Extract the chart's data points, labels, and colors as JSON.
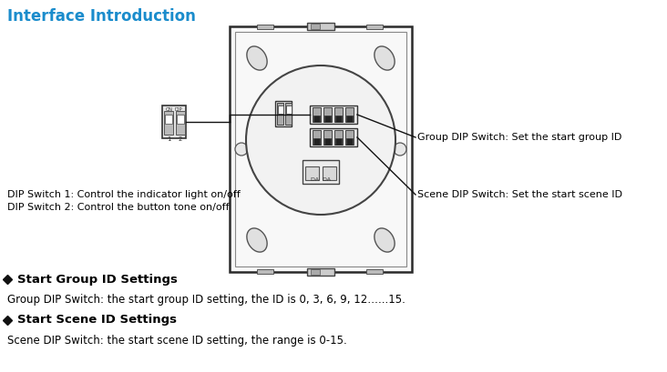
{
  "title": "Interface Introduction",
  "title_color": "#1a8ccc",
  "title_fontsize": 12,
  "bg_color": "#ffffff",
  "bullet1_heading": "Start Group ID Settings",
  "bullet1_text": "Group DIP Switch: the start group ID setting, the ID is 0, 3, 6, 9, 12…...15.",
  "bullet2_heading": "Start Scene ID Settings",
  "bullet2_text": "Scene DIP Switch: the start scene ID setting, the range is 0-15.",
  "label_group": "Group DIP Switch: Set the start group ID",
  "label_scene": "Scene DIP Switch: Set the start scene ID",
  "label_dip1": "DIP Switch 1: Control the indicator light on/off",
  "label_dip2": "DIP Switch 2: Control the button tone on/off",
  "text_color": "#000000",
  "heading_fontsize": 9.5,
  "body_fontsize": 8.5,
  "annot_fontsize": 8.0
}
